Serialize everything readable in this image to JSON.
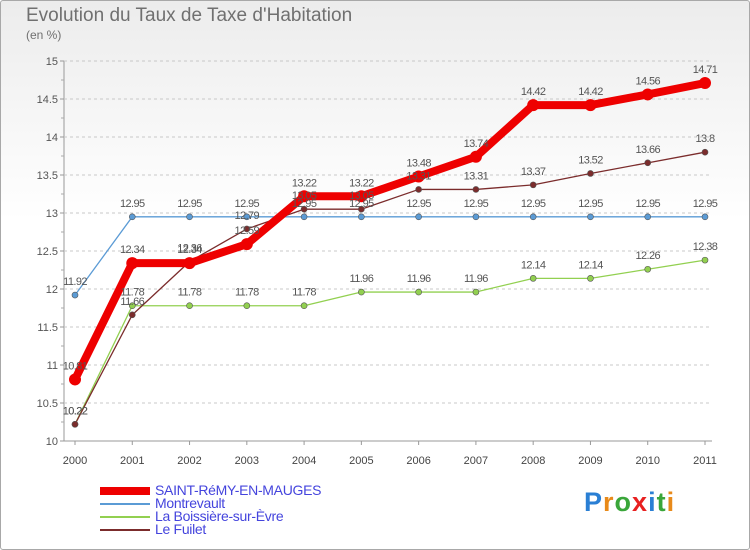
{
  "title": "Evolution du Taux de Taxe d'Habitation",
  "subtitle": "(en %)",
  "logo": {
    "text": "Proxiti",
    "letter_colors": [
      "#2a7fd4",
      "#e88a1a",
      "#3aa63a",
      "#e82020",
      "#2a7fd4",
      "#3aa63a",
      "#e88a1a"
    ]
  },
  "chart_data": {
    "type": "line",
    "title": "Evolution du Taux de Taxe d'Habitation",
    "ylabel": "(en %)",
    "xlabel": "",
    "ylim": [
      10,
      15
    ],
    "yticks": [
      "10",
      "10.5",
      "11",
      "11.5",
      "12",
      "12.5",
      "13",
      "13.5",
      "14",
      "14.5",
      "15"
    ],
    "categories": [
      "2000",
      "2001",
      "2002",
      "2003",
      "2004",
      "2005",
      "2006",
      "2007",
      "2008",
      "2009",
      "2010",
      "2011"
    ],
    "grid": "horizontal dashed",
    "legend_position": "bottom-left",
    "series": [
      {
        "name": "SAINT-RéMY-EN-MAUGES",
        "color": "#ee0000",
        "values": [
          10.81,
          12.34,
          12.34,
          12.59,
          13.22,
          13.22,
          13.48,
          13.74,
          14.42,
          14.42,
          14.56,
          14.71
        ],
        "labels": [
          "10.81",
          "12.34",
          "12.34",
          "12.59",
          "13.22",
          "13.22",
          "13.48",
          "13.74",
          "14.42",
          "14.42",
          "14.56",
          "14.71"
        ]
      },
      {
        "name": "Montrevault",
        "color": "#5b9bd5",
        "values": [
          11.92,
          12.95,
          12.95,
          12.95,
          12.95,
          12.95,
          12.95,
          12.95,
          12.95,
          12.95,
          12.95,
          12.95
        ],
        "labels": [
          "11.92",
          "12.95",
          "12.95",
          "12.95",
          "12.95",
          "12.95",
          "12.95",
          "12.95",
          "12.95",
          "12.95",
          "12.95",
          "12.95"
        ]
      },
      {
        "name": "La Boissière-sur-Èvre",
        "color": "#92d050",
        "values": [
          10.22,
          11.78,
          11.78,
          11.78,
          11.78,
          11.96,
          11.96,
          11.96,
          12.14,
          12.14,
          12.26,
          12.38
        ],
        "labels": [
          "10.22",
          "11.78",
          "11.78",
          "11.78",
          "11.78",
          "11.96",
          "11.96",
          "11.96",
          "12.14",
          "12.14",
          "12.26",
          "12.38"
        ]
      },
      {
        "name": "Le Fuilet",
        "color": "#7b2c2c",
        "values": [
          10.22,
          11.66,
          12.36,
          12.79,
          13.05,
          13.05,
          13.31,
          13.31,
          13.37,
          13.52,
          13.66,
          13.8
        ],
        "labels": [
          "10.22",
          "11.66",
          "12.36",
          "12.79",
          "13.05",
          "13.05",
          "13.31",
          "13.31",
          "13.37",
          "13.52",
          "13.66",
          "13.8"
        ]
      }
    ]
  }
}
